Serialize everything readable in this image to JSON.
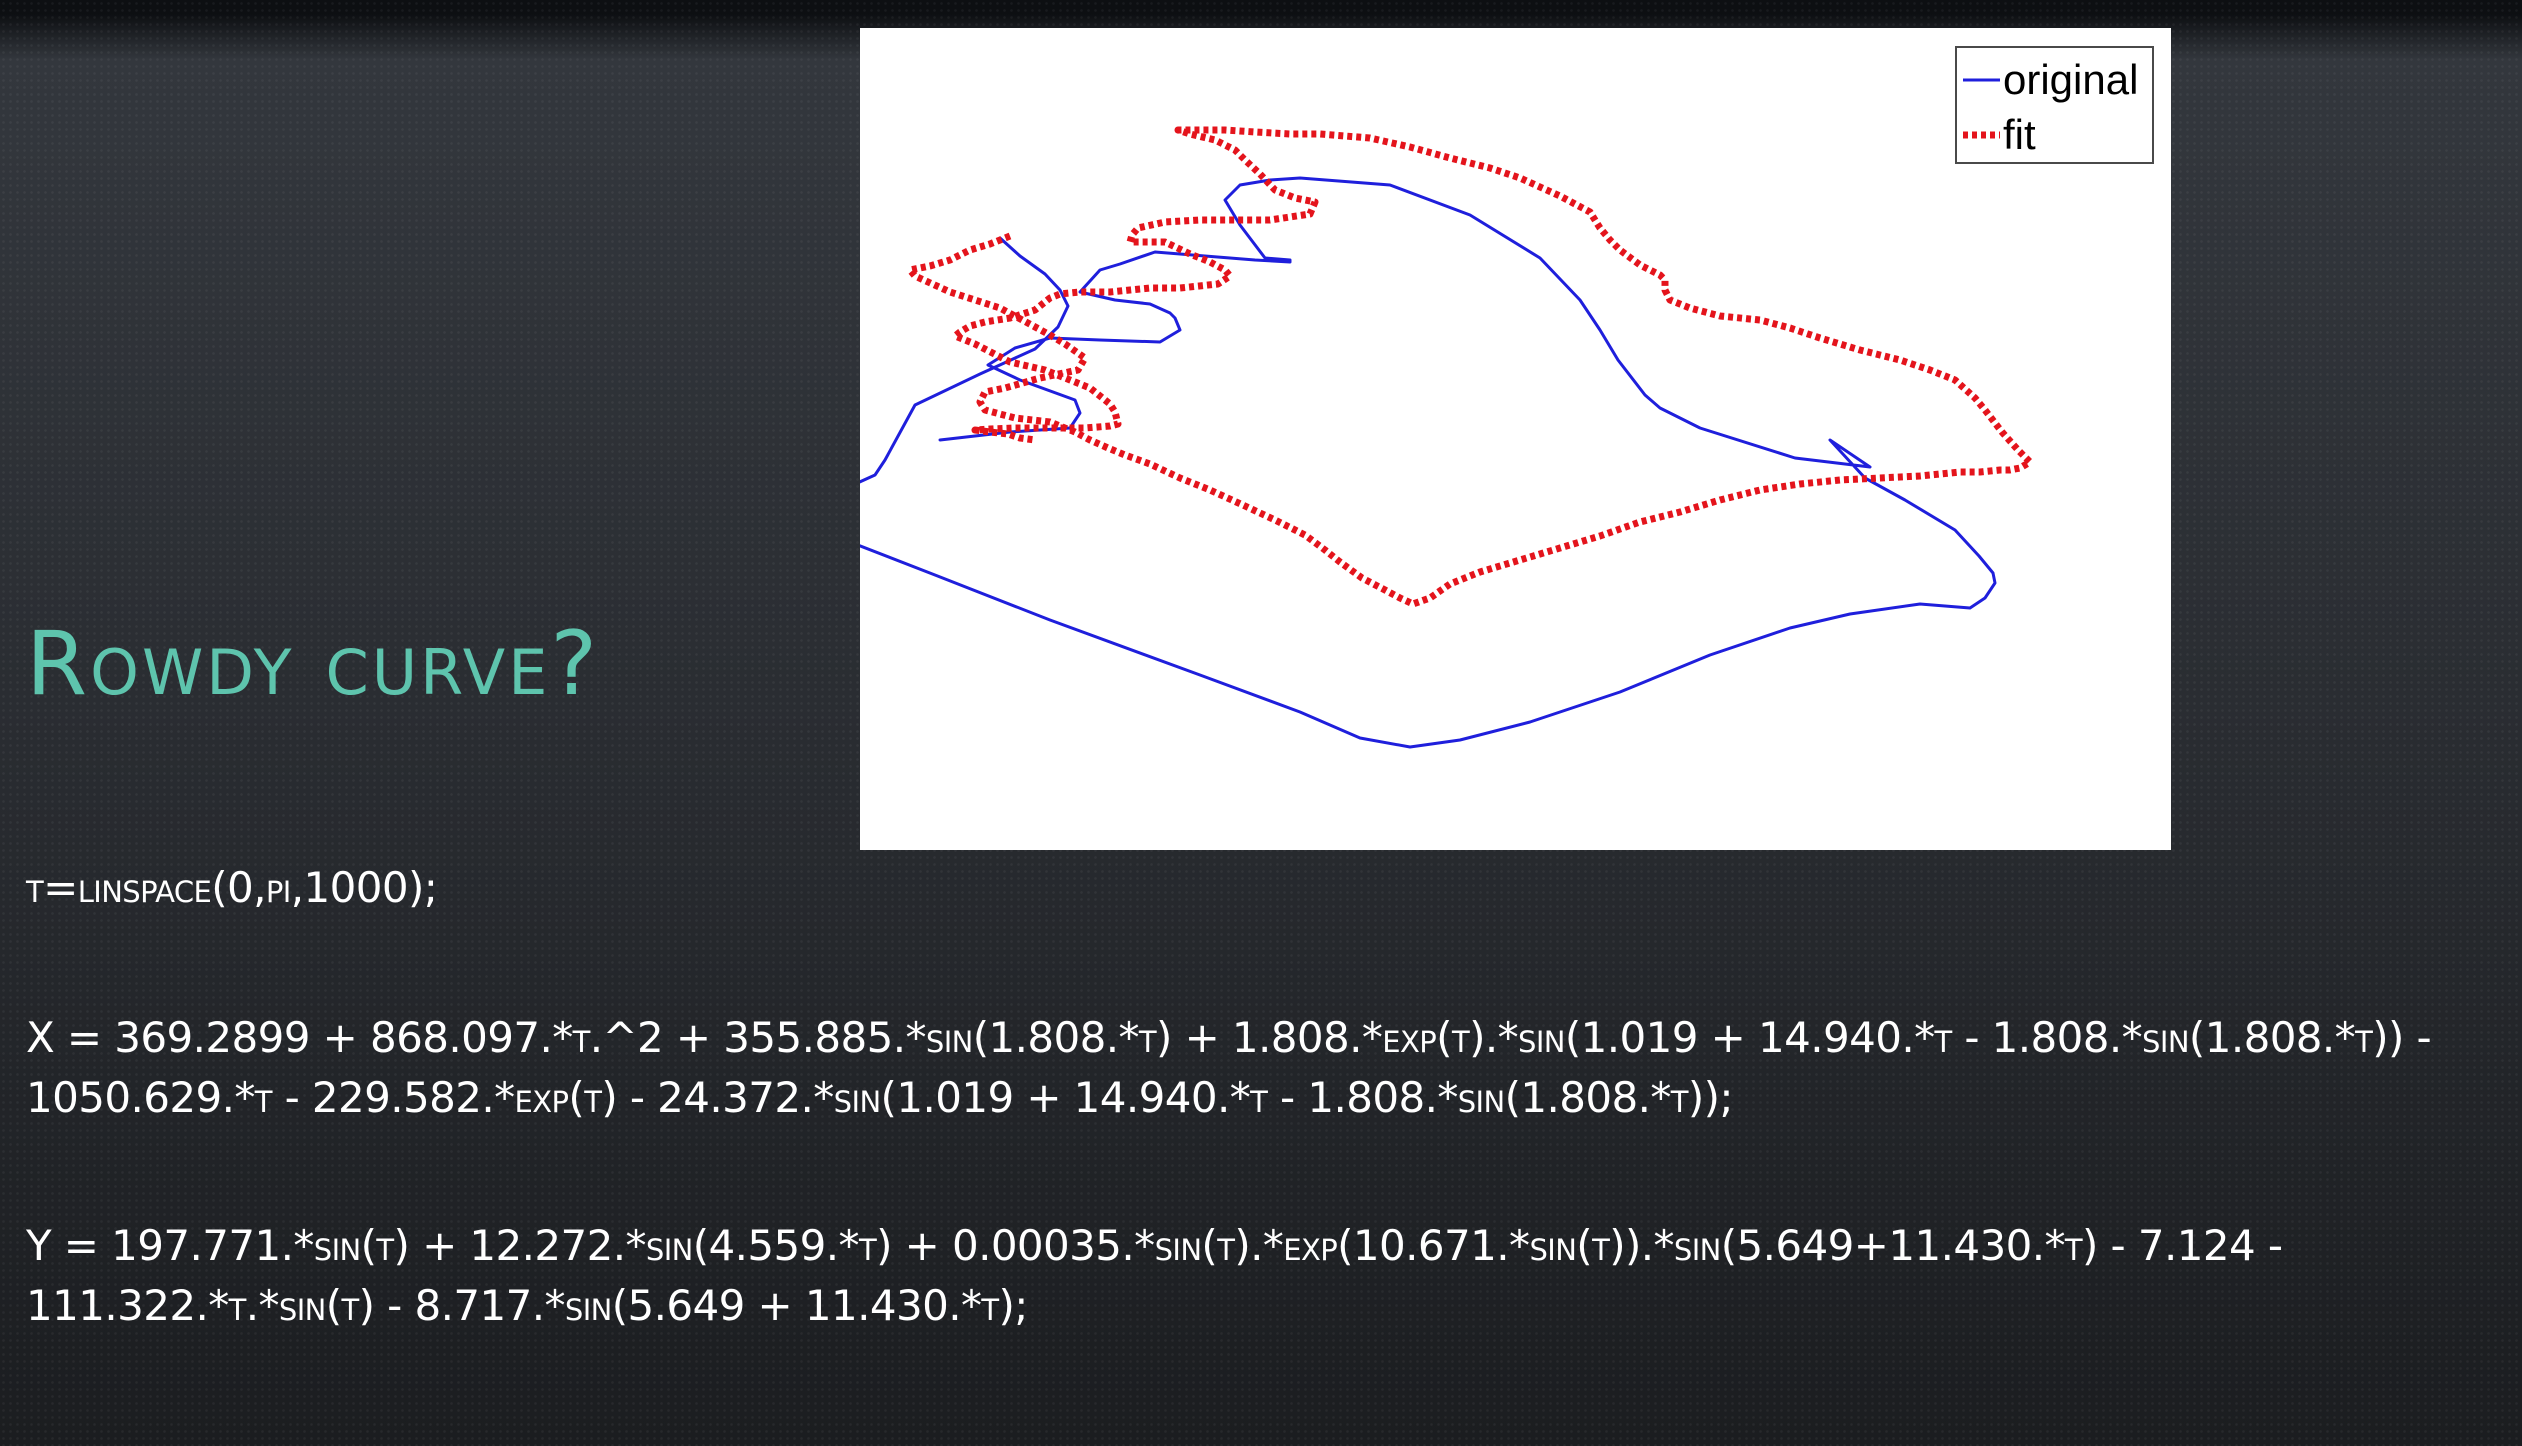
{
  "slide": {
    "title": "Rowdy curve?",
    "code_lines": {
      "t": "t=linspace(0,pi,1000);",
      "x1": "X = 369.2899 + 868.097.*t.^2 + 355.885.*sin(1.808.*t) + 1.808.*exp(t).*sin(1.019 + 14.940.*t - 1.808.*sin(1.808.*t)) -",
      "x2": "1050.629.*t - 229.582.*exp(t) - 24.372.*sin(1.019 + 14.940.*t - 1.808.*sin(1.808.*t));",
      "y1": "Y = 197.771.*sin(t) + 12.272.*sin(4.559.*t) + 0.00035.*sin(t).*exp(10.671.*sin(t)).*sin(5.649+11.430.*t) - 7.124 -",
      "y2": "111.322.*t.*sin(t) - 8.717.*sin(5.649 + 11.430.*t);"
    }
  },
  "chart_data": {
    "type": "line",
    "title": "",
    "xlabel": "",
    "ylabel": "",
    "grid": false,
    "axes_visible": false,
    "legend_position": "top-right",
    "legend": [
      "original",
      "fit"
    ],
    "series": [
      {
        "name": "original",
        "color": "#1f1fdc",
        "style": "solid",
        "points": [
          [
            1000,
            238
          ],
          [
            1020,
            256
          ],
          [
            1045,
            274
          ],
          [
            1060,
            290
          ],
          [
            1068,
            306
          ],
          [
            1058,
            327
          ],
          [
            1035,
            349
          ],
          [
            980,
            374
          ],
          [
            915,
            405
          ],
          [
            885,
            460
          ],
          [
            875,
            475
          ],
          [
            820,
            500
          ],
          [
            805,
            520
          ],
          [
            820,
            532
          ],
          [
            850,
            542
          ],
          [
            935,
            575
          ],
          [
            1050,
            620
          ],
          [
            1200,
            675
          ],
          [
            1300,
            712
          ],
          [
            1360,
            738
          ],
          [
            1410,
            747
          ],
          [
            1460,
            740
          ],
          [
            1530,
            722
          ],
          [
            1620,
            692
          ],
          [
            1710,
            655
          ],
          [
            1790,
            628
          ],
          [
            1850,
            614
          ],
          [
            1920,
            604
          ],
          [
            1970,
            608
          ],
          [
            1985,
            598
          ],
          [
            1995,
            583
          ],
          [
            1993,
            573
          ],
          [
            1979,
            556
          ],
          [
            1955,
            530
          ],
          [
            1905,
            500
          ],
          [
            1865,
            478
          ],
          [
            1830,
            440
          ],
          [
            1870,
            467
          ],
          [
            1795,
            458
          ],
          [
            1700,
            428
          ],
          [
            1660,
            408
          ],
          [
            1645,
            395
          ],
          [
            1618,
            360
          ],
          [
            1600,
            330
          ],
          [
            1580,
            300
          ],
          [
            1540,
            258
          ],
          [
            1470,
            215
          ],
          [
            1390,
            185
          ],
          [
            1300,
            178
          ],
          [
            1270,
            180
          ],
          [
            1240,
            185
          ],
          [
            1225,
            200
          ],
          [
            1240,
            225
          ],
          [
            1265,
            258
          ],
          [
            1290,
            260
          ],
          [
            1290,
            262
          ],
          [
            1255,
            260
          ],
          [
            1155,
            252
          ],
          [
            1120,
            264
          ],
          [
            1100,
            270
          ],
          [
            1080,
            292
          ],
          [
            1115,
            300
          ],
          [
            1150,
            304
          ],
          [
            1170,
            313
          ],
          [
            1175,
            318
          ],
          [
            1180,
            330
          ],
          [
            1160,
            342
          ],
          [
            1100,
            340
          ],
          [
            1050,
            338
          ],
          [
            1015,
            348
          ],
          [
            988,
            365
          ],
          [
            1020,
            380
          ],
          [
            1075,
            400
          ],
          [
            1080,
            413
          ],
          [
            1070,
            428
          ],
          [
            1010,
            432
          ],
          [
            975,
            436
          ],
          [
            940,
            440
          ],
          [
            940,
            440
          ]
        ]
      },
      {
        "name": "fit",
        "color": "#e4141c",
        "style": "dotted",
        "points": [
          [
            1010,
            236
          ],
          [
            990,
            244
          ],
          [
            970,
            250
          ],
          [
            950,
            260
          ],
          [
            930,
            266
          ],
          [
            910,
            270
          ],
          [
            915,
            276
          ],
          [
            950,
            292
          ],
          [
            1000,
            308
          ],
          [
            1050,
            335
          ],
          [
            1065,
            344
          ],
          [
            1085,
            358
          ],
          [
            1078,
            370
          ],
          [
            1040,
            378
          ],
          [
            1005,
            388
          ],
          [
            985,
            392
          ],
          [
            980,
            402
          ],
          [
            985,
            410
          ],
          [
            1015,
            418
          ],
          [
            1050,
            422
          ],
          [
            1075,
            432
          ],
          [
            1090,
            440
          ],
          [
            1108,
            448
          ],
          [
            1125,
            455
          ],
          [
            1150,
            464
          ],
          [
            1180,
            478
          ],
          [
            1210,
            490
          ],
          [
            1245,
            506
          ],
          [
            1275,
            520
          ],
          [
            1305,
            535
          ],
          [
            1325,
            550
          ],
          [
            1340,
            562
          ],
          [
            1362,
            578
          ],
          [
            1385,
            590
          ],
          [
            1400,
            598
          ],
          [
            1413,
            604
          ],
          [
            1430,
            598
          ],
          [
            1450,
            584
          ],
          [
            1480,
            572
          ],
          [
            1520,
            560
          ],
          [
            1560,
            548
          ],
          [
            1600,
            536
          ],
          [
            1640,
            522
          ],
          [
            1680,
            512
          ],
          [
            1720,
            500
          ],
          [
            1760,
            490
          ],
          [
            1800,
            484
          ],
          [
            1840,
            480
          ],
          [
            1880,
            478
          ],
          [
            1920,
            476
          ],
          [
            1960,
            472
          ],
          [
            1980,
            472
          ],
          [
            2000,
            470
          ],
          [
            2010,
            470
          ],
          [
            2020,
            468
          ],
          [
            2030,
            462
          ],
          [
            2018,
            450
          ],
          [
            2002,
            432
          ],
          [
            1985,
            410
          ],
          [
            1975,
            398
          ],
          [
            1955,
            380
          ],
          [
            1930,
            370
          ],
          [
            1900,
            360
          ],
          [
            1860,
            350
          ],
          [
            1820,
            338
          ],
          [
            1790,
            328
          ],
          [
            1760,
            320
          ],
          [
            1720,
            316
          ],
          [
            1690,
            308
          ],
          [
            1670,
            300
          ],
          [
            1665,
            290
          ],
          [
            1665,
            280
          ],
          [
            1660,
            275
          ],
          [
            1640,
            265
          ],
          [
            1620,
            250
          ],
          [
            1610,
            240
          ],
          [
            1600,
            228
          ],
          [
            1590,
            212
          ],
          [
            1560,
            196
          ],
          [
            1520,
            178
          ],
          [
            1490,
            168
          ],
          [
            1450,
            158
          ],
          [
            1410,
            147
          ],
          [
            1370,
            138
          ],
          [
            1320,
            134
          ],
          [
            1290,
            134
          ],
          [
            1255,
            132
          ],
          [
            1225,
            130
          ],
          [
            1200,
            130
          ],
          [
            1178,
            130
          ],
          [
            1190,
            134
          ],
          [
            1215,
            140
          ],
          [
            1235,
            150
          ],
          [
            1245,
            160
          ],
          [
            1260,
            174
          ],
          [
            1275,
            190
          ],
          [
            1295,
            198
          ],
          [
            1315,
            202
          ],
          [
            1310,
            214
          ],
          [
            1270,
            220
          ],
          [
            1230,
            220
          ],
          [
            1200,
            220
          ],
          [
            1165,
            222
          ],
          [
            1138,
            228
          ],
          [
            1132,
            235
          ],
          [
            1130,
            242
          ],
          [
            1165,
            242
          ],
          [
            1190,
            254
          ],
          [
            1210,
            262
          ],
          [
            1225,
            270
          ],
          [
            1230,
            276
          ],
          [
            1218,
            284
          ],
          [
            1180,
            288
          ],
          [
            1150,
            288
          ],
          [
            1110,
            292
          ],
          [
            1080,
            292
          ],
          [
            1060,
            294
          ],
          [
            1050,
            298
          ],
          [
            1035,
            310
          ],
          [
            1010,
            318
          ],
          [
            985,
            322
          ],
          [
            970,
            326
          ],
          [
            960,
            332
          ],
          [
            955,
            336
          ],
          [
            975,
            344
          ],
          [
            1010,
            362
          ],
          [
            1045,
            370
          ],
          [
            1070,
            380
          ],
          [
            1090,
            388
          ],
          [
            1100,
            396
          ],
          [
            1110,
            404
          ],
          [
            1115,
            412
          ],
          [
            1117,
            420
          ],
          [
            1118,
            424
          ],
          [
            1110,
            426
          ],
          [
            1085,
            428
          ],
          [
            1060,
            428
          ],
          [
            1035,
            428
          ],
          [
            1015,
            428
          ],
          [
            990,
            429
          ],
          [
            975,
            430
          ],
          [
            990,
            432
          ],
          [
            1008,
            434
          ],
          [
            1020,
            438
          ],
          [
            1035,
            440
          ]
        ]
      }
    ]
  }
}
